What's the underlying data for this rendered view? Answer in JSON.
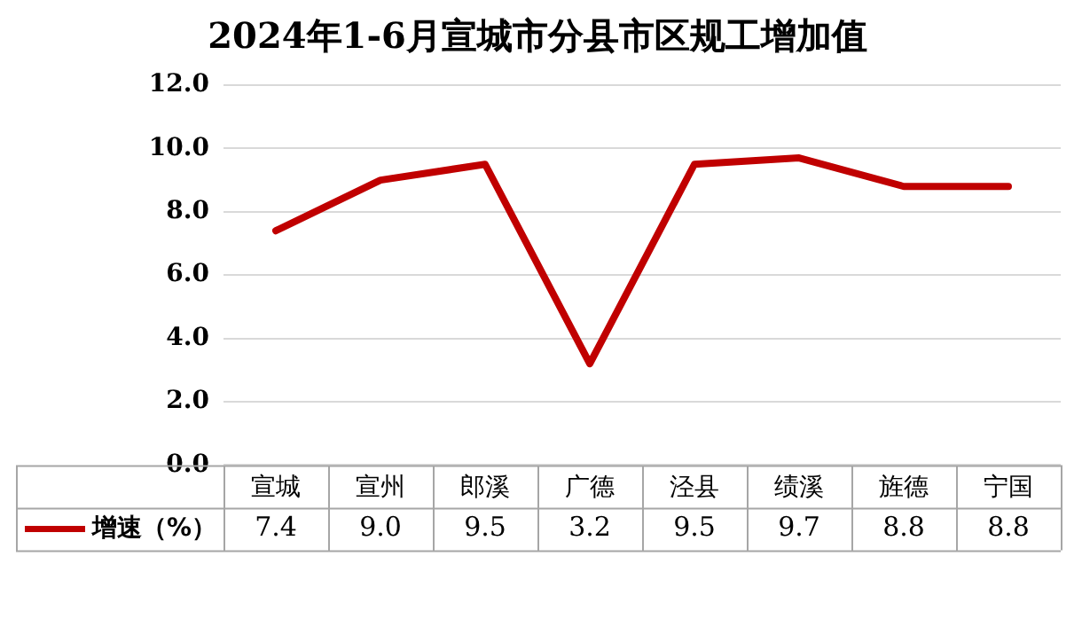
{
  "chart_data": {
    "type": "line",
    "title": "2024年1-6月宣城市分县市区规工增加值",
    "categories": [
      "宣城",
      "宣州",
      "郎溪",
      "广德",
      "泾县",
      "绩溪",
      "旌德",
      "宁国"
    ],
    "series": [
      {
        "name": "增速（%）",
        "color": "#c00000",
        "values": [
          7.4,
          9.0,
          9.5,
          3.2,
          9.5,
          9.7,
          8.8,
          8.8
        ],
        "value_labels": [
          "7.4",
          "9.0",
          "9.5",
          "3.2",
          "9.5",
          "9.7",
          "8.8",
          "8.8"
        ]
      }
    ],
    "ylim": [
      0,
      12
    ],
    "yticks": [
      {
        "value": 0,
        "label": "0.0"
      },
      {
        "value": 2,
        "label": "2.0"
      },
      {
        "value": 4,
        "label": "4.0"
      },
      {
        "value": 6,
        "label": "6.0"
      },
      {
        "value": 8,
        "label": "8.0"
      },
      {
        "value": 10,
        "label": "10.0"
      },
      {
        "value": 12,
        "label": "12.0"
      }
    ],
    "grid": "y",
    "legend": "bottom left",
    "marker": "none",
    "line_style": "solid"
  }
}
